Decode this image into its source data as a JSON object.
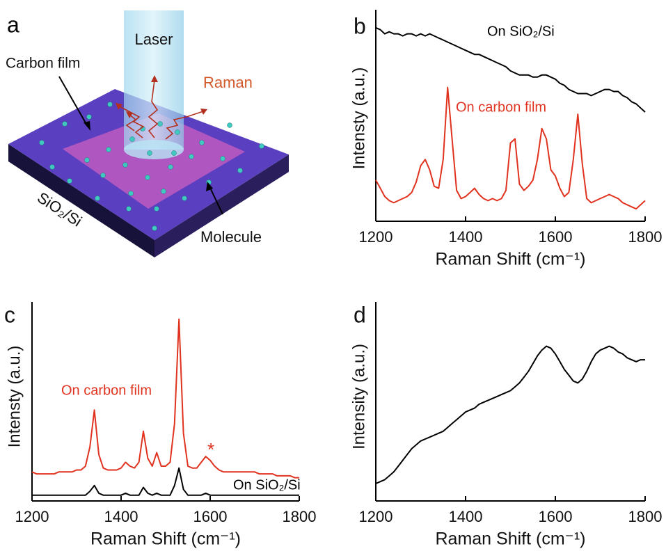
{
  "diagram": {
    "panel": "a",
    "laser": "Laser",
    "carbon_film": "Carbon film",
    "raman": "Raman",
    "substrate": "SiO₂/Si",
    "molecule": "Molecule"
  },
  "chart_data": [
    {
      "type": "line",
      "panel": "b",
      "xlabel": "Raman Shift (cm⁻¹)",
      "ylabel": "Intensty (a.u.)",
      "xlim": [
        1200,
        1800
      ],
      "xticks": [
        1200,
        1400,
        1600,
        1800
      ],
      "ylim": [
        0,
        100
      ],
      "x": [
        1200,
        1210,
        1220,
        1230,
        1240,
        1250,
        1260,
        1270,
        1280,
        1290,
        1300,
        1310,
        1320,
        1330,
        1340,
        1350,
        1360,
        1370,
        1380,
        1390,
        1400,
        1410,
        1420,
        1430,
        1440,
        1450,
        1460,
        1470,
        1480,
        1490,
        1500,
        1510,
        1520,
        1530,
        1540,
        1550,
        1560,
        1570,
        1580,
        1590,
        1600,
        1610,
        1620,
        1630,
        1640,
        1650,
        1660,
        1670,
        1680,
        1690,
        1700,
        1710,
        1720,
        1730,
        1740,
        1750,
        1760,
        1770,
        1780,
        1790,
        1800
      ],
      "series": [
        {
          "name": "On SiO₂/Si",
          "color": "#000000",
          "values": [
            94,
            93,
            91,
            92,
            91,
            91,
            90,
            91,
            91,
            90,
            91,
            90,
            91,
            90,
            89,
            88,
            87,
            86,
            85,
            84,
            83,
            82,
            81,
            81,
            80,
            79,
            78,
            77,
            76,
            75,
            73,
            72,
            71,
            71,
            71,
            70,
            70,
            71,
            71,
            70,
            69,
            67,
            66,
            64,
            63,
            62,
            62,
            62,
            61,
            62,
            63,
            64,
            64,
            63,
            63,
            61,
            60,
            58,
            57,
            55,
            53
          ]
        },
        {
          "name": "On carbon film",
          "color": "#e0321e",
          "values": [
            20,
            16,
            12,
            10,
            9,
            10,
            11,
            12,
            14,
            19,
            27,
            30,
            25,
            17,
            16,
            30,
            65,
            40,
            15,
            11,
            12,
            14,
            16,
            13,
            11,
            10,
            11,
            10,
            11,
            15,
            38,
            40,
            18,
            15,
            17,
            20,
            30,
            45,
            40,
            25,
            22,
            16,
            12,
            14,
            30,
            52,
            28,
            11,
            9,
            10,
            11,
            12,
            13,
            12,
            11,
            9,
            8,
            7,
            6,
            8,
            10
          ]
        }
      ]
    },
    {
      "type": "line",
      "panel": "c",
      "xlabel": "Raman Shift (cm⁻¹)",
      "ylabel": "Intensty (a.u.)",
      "xlim": [
        1200,
        1800
      ],
      "xticks": [
        1200,
        1400,
        1600,
        1800
      ],
      "ylim": [
        0,
        100
      ],
      "x": [
        1200,
        1210,
        1220,
        1230,
        1240,
        1250,
        1260,
        1270,
        1280,
        1290,
        1300,
        1310,
        1320,
        1330,
        1340,
        1350,
        1360,
        1370,
        1380,
        1390,
        1400,
        1410,
        1420,
        1430,
        1440,
        1450,
        1460,
        1470,
        1480,
        1490,
        1500,
        1510,
        1520,
        1530,
        1540,
        1550,
        1560,
        1570,
        1580,
        1590,
        1600,
        1610,
        1620,
        1630,
        1640,
        1650,
        1660,
        1670,
        1680,
        1690,
        1700,
        1710,
        1720,
        1730,
        1740,
        1750,
        1760,
        1770,
        1780,
        1790,
        1800
      ],
      "series": [
        {
          "name": "On carbon film",
          "color": "#e0321e",
          "values": [
            15,
            14,
            14,
            14,
            14,
            14,
            15,
            15,
            15,
            15,
            16,
            16,
            18,
            28,
            47,
            24,
            17,
            16,
            16,
            16,
            17,
            20,
            18,
            17,
            20,
            36,
            22,
            18,
            25,
            18,
            18,
            20,
            40,
            94,
            35,
            18,
            17,
            17,
            20,
            23,
            21,
            18,
            16,
            15,
            15,
            15,
            15,
            15,
            15,
            15,
            15,
            14,
            14,
            14,
            14,
            13,
            13,
            13,
            13,
            12,
            12
          ]
        },
        {
          "name": "On SiO₂/Si",
          "color": "#000000",
          "values": [
            3,
            3,
            3,
            3,
            3,
            3,
            3,
            3,
            3,
            3,
            3,
            3,
            3,
            5,
            8,
            4,
            3,
            3,
            3,
            3,
            3,
            4,
            3,
            3,
            3,
            7,
            4,
            3,
            4,
            3,
            3,
            3,
            8,
            17,
            6,
            3,
            3,
            3,
            3,
            4,
            3,
            3,
            3,
            3,
            3,
            3,
            3,
            3,
            3,
            3,
            3,
            3,
            3,
            3,
            3,
            3,
            3,
            3,
            3,
            3,
            3
          ]
        }
      ],
      "annotations": [
        "*"
      ]
    },
    {
      "type": "line",
      "panel": "d",
      "xlabel": "Raman Shift (cm⁻¹)",
      "ylabel": "Intensity (a.u.)",
      "xlim": [
        1200,
        1800
      ],
      "xticks": [
        1200,
        1400,
        1600,
        1800
      ],
      "ylim": [
        0,
        100
      ],
      "x": [
        1200,
        1210,
        1220,
        1230,
        1240,
        1250,
        1260,
        1270,
        1280,
        1290,
        1300,
        1310,
        1320,
        1330,
        1340,
        1350,
        1360,
        1370,
        1380,
        1390,
        1400,
        1410,
        1420,
        1430,
        1440,
        1450,
        1460,
        1470,
        1480,
        1490,
        1500,
        1510,
        1520,
        1530,
        1540,
        1550,
        1560,
        1570,
        1580,
        1590,
        1600,
        1610,
        1620,
        1630,
        1640,
        1650,
        1660,
        1670,
        1680,
        1690,
        1700,
        1710,
        1720,
        1730,
        1740,
        1750,
        1760,
        1770,
        1780,
        1790,
        1800
      ],
      "series": [
        {
          "color": "#000000",
          "values": [
            9,
            10,
            11,
            13,
            15,
            18,
            21,
            24,
            27,
            29,
            31,
            32,
            33,
            34,
            35,
            36,
            38,
            40,
            42,
            44,
            46,
            47,
            48,
            50,
            51,
            52,
            53,
            54,
            55,
            56,
            57,
            59,
            61,
            64,
            67,
            71,
            75,
            78,
            80,
            79,
            76,
            72,
            68,
            65,
            62,
            61,
            63,
            67,
            72,
            76,
            78,
            79,
            80,
            79,
            77,
            76,
            74,
            73,
            72,
            73,
            73
          ]
        }
      ]
    }
  ]
}
